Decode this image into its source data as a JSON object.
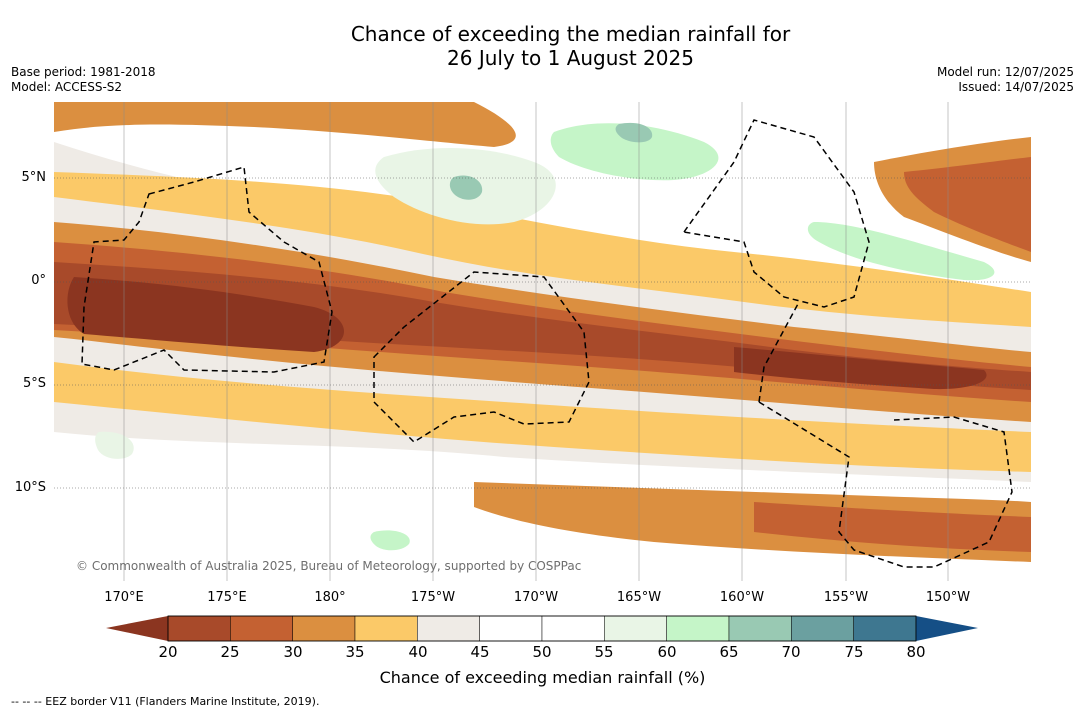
{
  "title_line1": "Chance of exceeding the median rainfall for",
  "title_line2": "26 July to 1 August 2025",
  "base_period": "Base period: 1981-2018",
  "model": "Model: ACCESS-S2",
  "model_run": "Model run: 12/07/2025",
  "issued": "Issued: 14/07/2025",
  "lat_labels": [
    "5°N",
    "0°",
    "5°S",
    "10°S"
  ],
  "lon_labels": [
    "170°E",
    "175°E",
    "180°",
    "175°W",
    "170°W",
    "165°W",
    "160°W",
    "155°W",
    "150°W"
  ],
  "copyright": "© Commonwealth of Australia 2025, Bureau of Meteorology, supported by COSPPac",
  "colorbar": {
    "ticks": [
      "20",
      "25",
      "30",
      "35",
      "40",
      "45",
      "50",
      "55",
      "60",
      "65",
      "70",
      "75",
      "80"
    ],
    "colors": [
      "#8b3520",
      "#a84a2a",
      "#c46132",
      "#db8f40",
      "#fbc968",
      "#efebe6",
      "#ffffff",
      "#ffffff",
      "#e9f5e6",
      "#c5f5c8",
      "#99c9b3",
      "#6ba0a0",
      "#3e7790",
      "#154f86"
    ],
    "label": "Chance of exceeding median rainfall (%)"
  },
  "eez_note": "--  --  -- EEZ border V11 (Flanders Marine Institute, 2019)."
}
